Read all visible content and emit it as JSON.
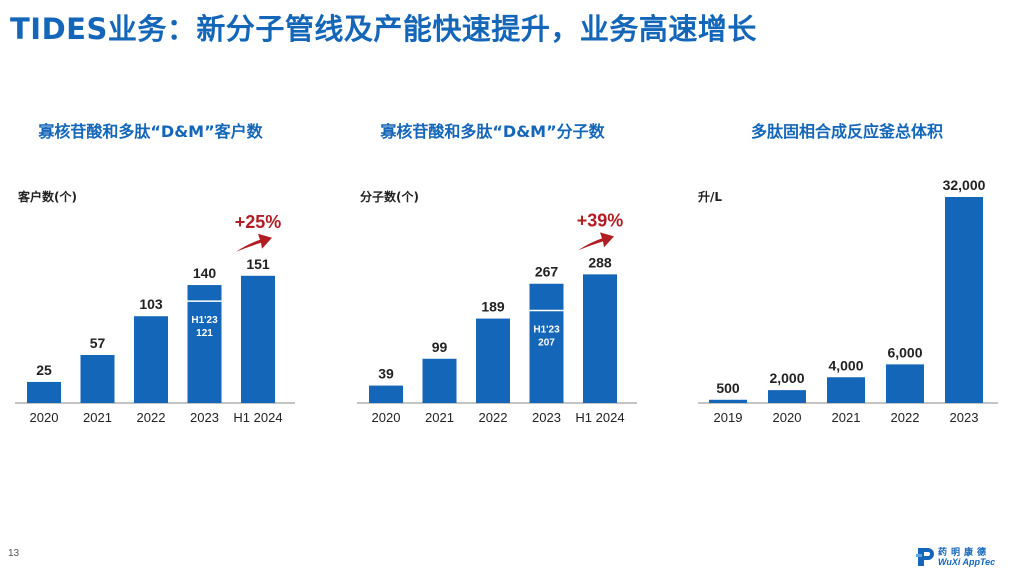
{
  "page": {
    "title": "TIDES业务：新分子管线及产能快速提升，业务高速增长",
    "page_number": "13"
  },
  "logo": {
    "cn": "药明康德",
    "en": "WuXi AppTec"
  },
  "colors": {
    "bar": "#1466b8",
    "title": "#1466b8",
    "growth": "#b01e23",
    "axis": "#888888"
  },
  "chart_data": [
    {
      "type": "bar",
      "title": "寡核苷酸和多肽“D&M”客户数",
      "ylabel": "客户数(个)",
      "categories": [
        "2020",
        "2021",
        "2022",
        "2023",
        "H1 2024"
      ],
      "values": [
        25,
        57,
        103,
        140,
        151
      ],
      "ylim": [
        0,
        165
      ],
      "inner_marker": {
        "category": "2023",
        "label_line1": "H1'23",
        "label_line2": "121",
        "value": 121
      },
      "growth": {
        "label": "+25%"
      }
    },
    {
      "type": "bar",
      "title": "寡核苷酸和多肽“D&M”分子数",
      "ylabel": "分子数(个)",
      "categories": [
        "2020",
        "2021",
        "2022",
        "2023",
        "H1 2024"
      ],
      "values": [
        39,
        99,
        189,
        267,
        288
      ],
      "ylim": [
        0,
        300
      ],
      "inner_marker": {
        "category": "2023",
        "label_line1": "H1'23",
        "label_line2": "207",
        "value": 207
      },
      "growth": {
        "label": "+39%"
      }
    },
    {
      "type": "bar",
      "title": "多肽固相合成反应釜总体积",
      "ylabel": "升/L",
      "categories": [
        "2019",
        "2020",
        "2021",
        "2022",
        "2023"
      ],
      "values": [
        500,
        2000,
        4000,
        6000,
        32000
      ],
      "value_labels": [
        "500",
        "2,000",
        "4,000",
        "6,000",
        "32,000"
      ],
      "ylim": [
        0,
        32000
      ]
    }
  ]
}
